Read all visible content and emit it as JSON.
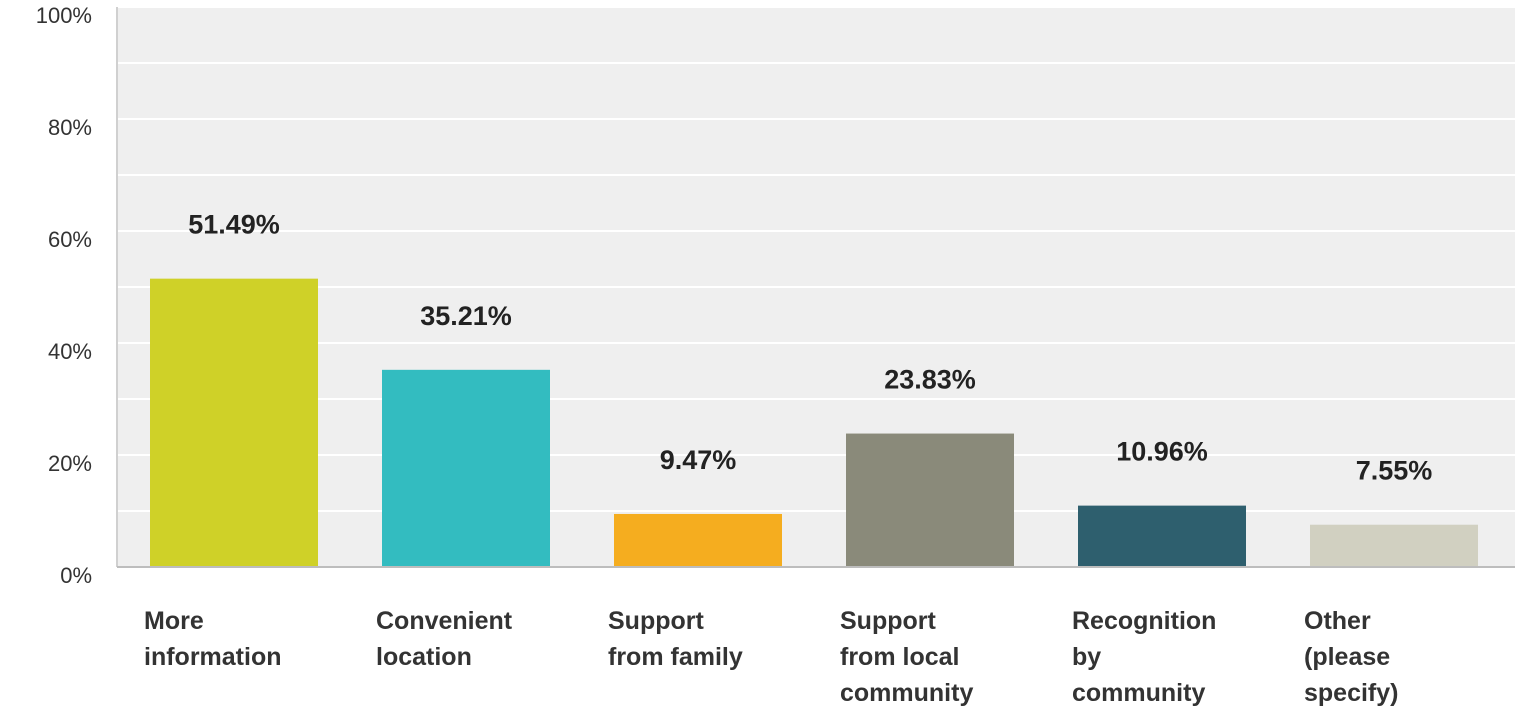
{
  "chart_data": {
    "type": "bar",
    "categories": [
      [
        "More",
        "information"
      ],
      [
        "Convenient",
        "location"
      ],
      [
        "Support",
        "from family"
      ],
      [
        "Support",
        "from local",
        "community"
      ],
      [
        "Recognition",
        "by",
        "community"
      ],
      [
        "Other",
        "(please",
        "specify)"
      ]
    ],
    "values": [
      51.49,
      35.21,
      9.47,
      23.83,
      10.96,
      7.55
    ],
    "value_labels": [
      "51.49%",
      "35.21%",
      "9.47%",
      "23.83%",
      "10.96%",
      "7.55%"
    ],
    "colors": [
      "#cfd128",
      "#33bcc0",
      "#f5ad1f",
      "#8a8a7a",
      "#2e5f6e",
      "#d1d0c1"
    ],
    "ylim": [
      0,
      100
    ],
    "y_ticks": [
      0,
      20,
      40,
      60,
      80,
      100
    ],
    "y_tick_labels": [
      "0%",
      "20%",
      "40%",
      "60%",
      "80%",
      "100%"
    ],
    "grid": true,
    "background": "#efefef",
    "title": "",
    "xlabel": "",
    "ylabel": ""
  }
}
